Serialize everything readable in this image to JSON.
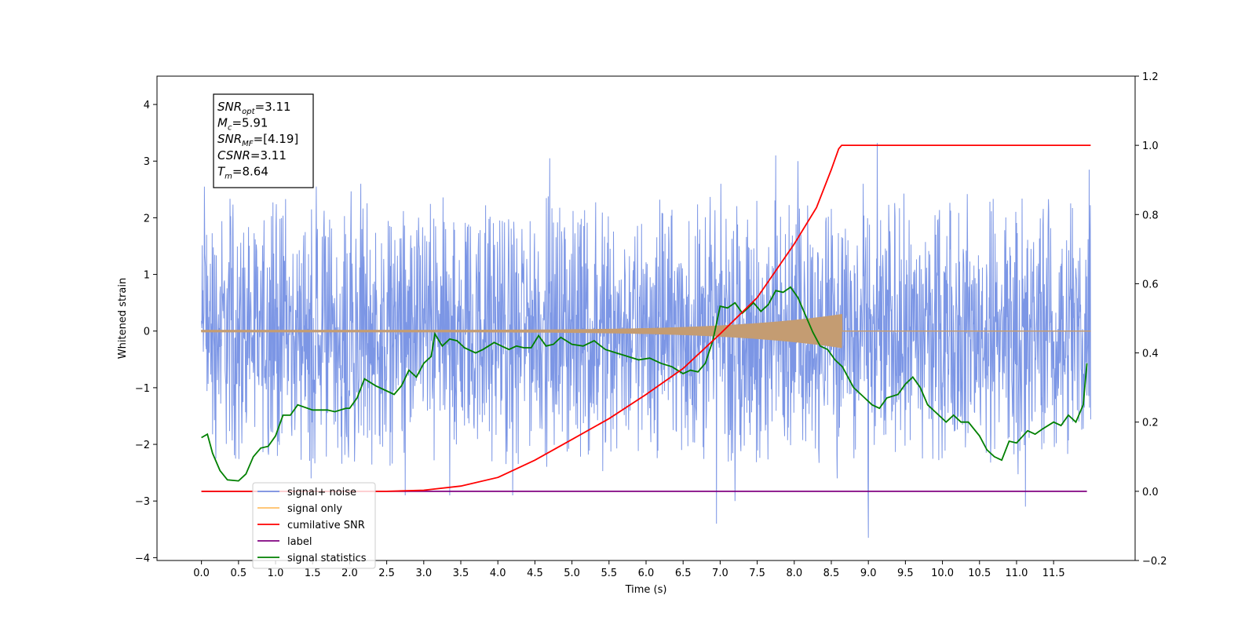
{
  "chart_data": {
    "type": "line",
    "xlabel": "Time (s)",
    "ylabel": "Whitened strain",
    "xlim": [
      -0.6,
      12.6
    ],
    "ylim_left": [
      -4.05,
      4.5
    ],
    "ylim_right": [
      -0.2,
      1.2
    ],
    "x_ticks": [
      0.0,
      0.5,
      1.0,
      1.5,
      2.0,
      2.5,
      3.0,
      3.5,
      4.0,
      4.5,
      5.0,
      5.5,
      6.0,
      6.5,
      7.0,
      7.5,
      8.0,
      8.5,
      9.0,
      9.5,
      10.0,
      10.5,
      11.0,
      11.5
    ],
    "x_tick_labels": [
      "0.0",
      "0.5",
      "1.0",
      "1.5",
      "2.0",
      "2.5",
      "3.0",
      "3.5",
      "4.0",
      "4.5",
      "5.0",
      "5.5",
      "6.0",
      "6.5",
      "7.0",
      "7.5",
      "8.0",
      "8.5",
      "9.0",
      "9.5",
      "10.0",
      "10.5",
      "11.0",
      "11.5"
    ],
    "y_left_ticks": [
      -4,
      -3,
      -2,
      -1,
      0,
      1,
      2,
      3,
      4
    ],
    "y_left_tick_labels": [
      "−4",
      "−3",
      "−2",
      "−1",
      "0",
      "1",
      "2",
      "3",
      "4"
    ],
    "y_right_ticks": [
      -0.2,
      0.0,
      0.2,
      0.4,
      0.6,
      0.8,
      1.0,
      1.2
    ],
    "y_right_tick_labels": [
      "−0.2",
      "0.0",
      "0.2",
      "0.4",
      "0.6",
      "0.8",
      "1.0",
      "1.2"
    ],
    "grid": false,
    "legend_position": "bottom-left",
    "annotation": [
      {
        "symbol": "SNR",
        "sub": "opt",
        "value": "=3.11"
      },
      {
        "symbol": "M",
        "sub": "c",
        "value": "=5.91"
      },
      {
        "symbol": "SNR",
        "sub": "MF",
        "value": "=[4.19]"
      },
      {
        "symbol": "CSNR",
        "sub": "",
        "value": "=3.11"
      },
      {
        "symbol": "T",
        "sub": "m",
        "value": "=8.64"
      }
    ],
    "series": [
      {
        "name": "signal+ noise",
        "axis": "left",
        "color": "#7590e4",
        "x_range": [
          0.0,
          12.0
        ],
        "envelope_upper": 2.3,
        "envelope_lower": -2.3,
        "peaks": [
          [
            0.04,
            2.55
          ],
          [
            1.55,
            2.55
          ],
          [
            2.15,
            2.6
          ],
          [
            4.7,
            3.05
          ],
          [
            7.75,
            3.1
          ],
          [
            8.05,
            3.0
          ],
          [
            9.12,
            3.32
          ],
          [
            11.98,
            2.85
          ],
          [
            6.95,
            -3.4
          ],
          [
            7.2,
            -3.0
          ],
          [
            9.0,
            -3.65
          ],
          [
            11.12,
            -3.1
          ],
          [
            2.75,
            -2.9
          ],
          [
            3.35,
            -2.9
          ],
          [
            4.2,
            -2.9
          ]
        ]
      },
      {
        "name": "signal only",
        "axis": "left",
        "color": "#c49c72",
        "x_range": [
          0.0,
          12.0
        ],
        "chirp_end": 8.64,
        "amplitude_start": 0.02,
        "amplitude_end": 0.3
      },
      {
        "name": "cumilative SNR",
        "axis": "right",
        "color": "#ff0000",
        "x": [
          0.0,
          2.5,
          3.0,
          3.5,
          4.0,
          4.5,
          5.0,
          5.5,
          6.0,
          6.5,
          7.0,
          7.5,
          8.0,
          8.3,
          8.5,
          8.6,
          8.64,
          12.0
        ],
        "y": [
          0.0,
          0.0,
          0.003,
          0.015,
          0.04,
          0.09,
          0.15,
          0.21,
          0.28,
          0.355,
          0.455,
          0.56,
          0.715,
          0.82,
          0.93,
          0.99,
          1.0,
          1.0
        ]
      },
      {
        "name": "label",
        "axis": "right",
        "color": "#800080",
        "x": [
          0.0,
          11.95
        ],
        "y": [
          0.0,
          0.0
        ]
      },
      {
        "name": "signal statistics",
        "axis": "right",
        "color": "#008000",
        "x": [
          0.0,
          0.08,
          0.15,
          0.25,
          0.35,
          0.5,
          0.6,
          0.7,
          0.8,
          0.9,
          1.0,
          1.1,
          1.2,
          1.3,
          1.5,
          1.7,
          1.8,
          1.95,
          2.0,
          2.1,
          2.2,
          2.35,
          2.5,
          2.6,
          2.7,
          2.8,
          2.9,
          3.0,
          3.1,
          3.15,
          3.25,
          3.35,
          3.45,
          3.55,
          3.7,
          3.8,
          3.95,
          4.05,
          4.15,
          4.25,
          4.35,
          4.45,
          4.55,
          4.65,
          4.75,
          4.85,
          5.0,
          5.15,
          5.3,
          5.45,
          5.6,
          5.75,
          5.9,
          6.05,
          6.2,
          6.35,
          6.5,
          6.6,
          6.7,
          6.8,
          6.9,
          7.0,
          7.1,
          7.2,
          7.3,
          7.45,
          7.55,
          7.65,
          7.75,
          7.85,
          7.95,
          8.05,
          8.15,
          8.25,
          8.35,
          8.45,
          8.55,
          8.65,
          8.8,
          8.95,
          9.05,
          9.15,
          9.25,
          9.4,
          9.5,
          9.6,
          9.7,
          9.8,
          9.95,
          10.05,
          10.15,
          10.25,
          10.35,
          10.5,
          10.6,
          10.7,
          10.8,
          10.9,
          11.0,
          11.15,
          11.25,
          11.35,
          11.5,
          11.6,
          11.7,
          11.8,
          11.9,
          11.95
        ],
        "y": [
          0.155,
          0.165,
          0.11,
          0.06,
          0.033,
          0.03,
          0.05,
          0.1,
          0.125,
          0.13,
          0.16,
          0.22,
          0.22,
          0.25,
          0.235,
          0.235,
          0.23,
          0.24,
          0.24,
          0.27,
          0.325,
          0.305,
          0.29,
          0.28,
          0.305,
          0.35,
          0.33,
          0.37,
          0.39,
          0.455,
          0.42,
          0.44,
          0.435,
          0.415,
          0.4,
          0.41,
          0.43,
          0.42,
          0.41,
          0.42,
          0.415,
          0.415,
          0.45,
          0.42,
          0.425,
          0.445,
          0.425,
          0.42,
          0.435,
          0.41,
          0.4,
          0.39,
          0.38,
          0.385,
          0.37,
          0.36,
          0.34,
          0.35,
          0.345,
          0.37,
          0.435,
          0.535,
          0.53,
          0.545,
          0.515,
          0.545,
          0.52,
          0.54,
          0.58,
          0.575,
          0.59,
          0.56,
          0.51,
          0.46,
          0.42,
          0.41,
          0.38,
          0.36,
          0.3,
          0.27,
          0.25,
          0.24,
          0.27,
          0.28,
          0.31,
          0.33,
          0.3,
          0.25,
          0.22,
          0.2,
          0.22,
          0.2,
          0.2,
          0.16,
          0.12,
          0.1,
          0.09,
          0.145,
          0.14,
          0.175,
          0.165,
          0.18,
          0.2,
          0.19,
          0.22,
          0.2,
          0.25,
          0.37
        ]
      }
    ]
  },
  "legend": [
    {
      "label": "signal+ noise",
      "color": "#7590e4"
    },
    {
      "label": "signal only",
      "color": "#ffbf66"
    },
    {
      "label": "cumilative SNR",
      "color": "#ff0000"
    },
    {
      "label": "label",
      "color": "#800080"
    },
    {
      "label": "signal statistics",
      "color": "#008000"
    }
  ]
}
